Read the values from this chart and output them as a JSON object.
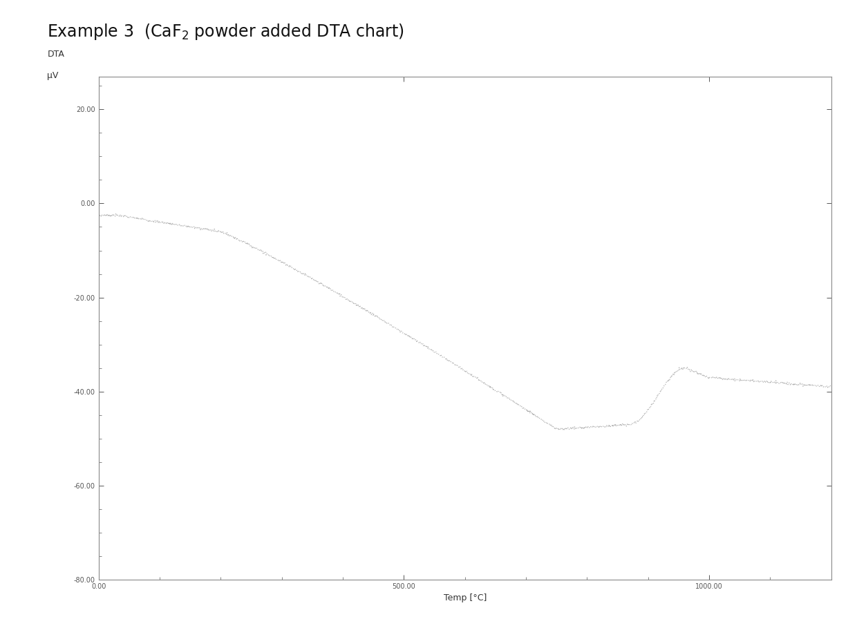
{
  "ylabel_line1": "DTA",
  "ylabel_line2": "μV",
  "xlabel": "Temp [°C]",
  "xlim": [
    0,
    1200
  ],
  "ylim": [
    -80,
    27
  ],
  "yticks": [
    20.0,
    0.0,
    -20.0,
    -40.0,
    -60.0,
    -80.0
  ],
  "xticks": [
    0.0,
    500.0,
    1000.0
  ],
  "line_color": "#b0b0b0",
  "bg_color": "#ffffff",
  "title_fontsize": 17,
  "label_fontsize": 8,
  "tick_fontsize": 7,
  "spine_color": "#888888"
}
